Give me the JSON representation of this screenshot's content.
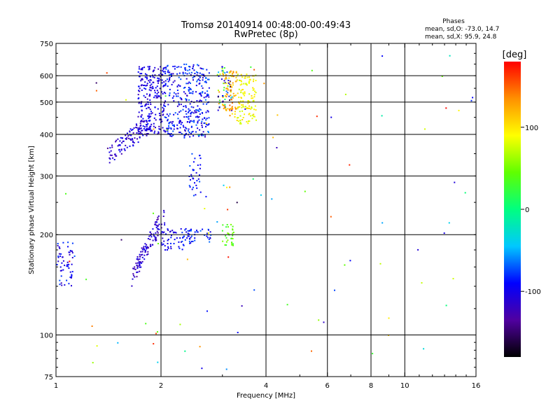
{
  "chart_data": {
    "type": "scatter",
    "title": "Tromsø 20140914 00:48:00-00:49:43",
    "subtitle": "RwPretec (8p)",
    "xlabel": "Frequency [MHz]",
    "ylabel": "Stationary phase Virtual Height [km]",
    "x_scale": "log2",
    "y_scale": "log",
    "xlim": [
      1,
      16
    ],
    "ylim": [
      75,
      750
    ],
    "x_ticks": [
      1,
      2,
      4,
      6,
      8,
      10,
      16
    ],
    "x_tick_labels": [
      "1",
      "2",
      "4",
      "6",
      "8",
      "10",
      "16"
    ],
    "y_ticks": [
      75,
      100,
      200,
      300,
      400,
      500,
      600,
      750
    ],
    "y_tick_labels": [
      "75",
      "100",
      "200",
      "300",
      "400",
      "500",
      "600",
      "750"
    ],
    "grid": true,
    "stats": {
      "heading": "Phases",
      "line_o": "mean, sd,O: -73.0, 14.7",
      "line_x": "mean, sd,X:  95.9, 24.8"
    },
    "colorbar": {
      "label": "[deg]",
      "range": [
        -180,
        180
      ],
      "ticks": [
        100,
        0,
        -100
      ],
      "tick_labels": [
        "100",
        "0",
        "-100"
      ],
      "colors": [
        "#000000",
        "#5000a0",
        "#0000ff",
        "#00c8ff",
        "#00ff80",
        "#60ff00",
        "#ffff00",
        "#ff9000",
        "#ff0000"
      ]
    },
    "clusters": [
      {
        "f": [
          1.0,
          1.12
        ],
        "h": [
          140,
          190
        ],
        "phase": [
          -120,
          -70
        ],
        "n": 55,
        "kind": "rect"
      },
      {
        "f": [
          1.42,
          1.9
        ],
        "h": [
          345,
          440
        ],
        "phase": [
          -130,
          -90
        ],
        "n": 110,
        "kind": "rise"
      },
      {
        "f": [
          1.72,
          2.05
        ],
        "h": [
          400,
          640
        ],
        "phase": [
          -125,
          -85
        ],
        "n": 230,
        "kind": "rect"
      },
      {
        "f": [
          2.05,
          2.3
        ],
        "h": [
          390,
          650
        ],
        "phase": [
          -120,
          -70
        ],
        "n": 130,
        "kind": "rect"
      },
      {
        "f": [
          2.3,
          2.75
        ],
        "h": [
          390,
          650
        ],
        "phase": [
          -120,
          -60
        ],
        "n": 230,
        "kind": "rect"
      },
      {
        "f": [
          2.4,
          2.6
        ],
        "h": [
          260,
          350
        ],
        "phase": [
          -110,
          -70
        ],
        "n": 35,
        "kind": "rect"
      },
      {
        "f": [
          2.9,
          3.2
        ],
        "h": [
          470,
          640
        ],
        "phase": [
          -160,
          140
        ],
        "n": 60,
        "kind": "rect"
      },
      {
        "f": [
          3.0,
          3.3
        ],
        "h": [
          450,
          620
        ],
        "phase": [
          90,
          150
        ],
        "n": 80,
        "kind": "rect"
      },
      {
        "f": [
          3.3,
          3.75
        ],
        "h": [
          430,
          610
        ],
        "phase": [
          70,
          110
        ],
        "n": 120,
        "kind": "rect"
      },
      {
        "f": [
          1.65,
          2.05
        ],
        "h": [
          150,
          230
        ],
        "phase": [
          -135,
          -95
        ],
        "n": 120,
        "kind": "rise"
      },
      {
        "f": [
          2.0,
          2.45
        ],
        "h": [
          180,
          210
        ],
        "phase": [
          -115,
          -75
        ],
        "n": 60,
        "kind": "rect"
      },
      {
        "f": [
          2.3,
          2.8
        ],
        "h": [
          188,
          210
        ],
        "phase": [
          -110,
          -60
        ],
        "n": 35,
        "kind": "rect"
      },
      {
        "f": [
          3.0,
          3.25
        ],
        "h": [
          185,
          215
        ],
        "phase": [
          20,
          60
        ],
        "n": 30,
        "kind": "rect"
      },
      {
        "f": [
          1.05,
          16.0
        ],
        "h": [
          75,
          700
        ],
        "phase": [
          -180,
          180
        ],
        "n": 95,
        "kind": "sparse"
      }
    ]
  }
}
